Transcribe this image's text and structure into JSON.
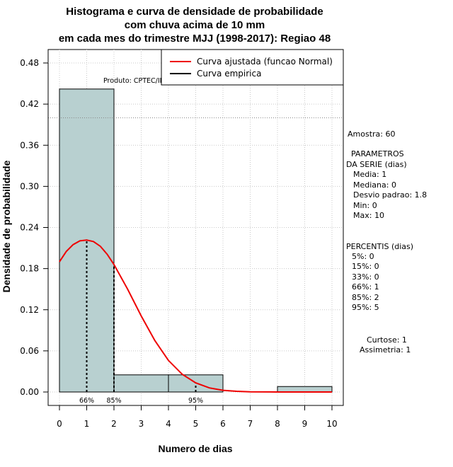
{
  "chart_data": {
    "type": "histogram",
    "title": [
      "Histograma e curva de densidade de probabilidade",
      "com chuva acima de 10 mm",
      "em cada mes do trimestre MJJ (1998-2017): Regiao 48"
    ],
    "xlabel": "Numero de dias",
    "ylabel": "Densidade de probabilidade",
    "xlim": [
      0,
      10
    ],
    "ylim": [
      0,
      0.48
    ],
    "x_ticks": [
      0,
      1,
      2,
      3,
      4,
      5,
      6,
      7,
      8,
      9,
      10
    ],
    "y_ticks": [
      0.0,
      0.06,
      0.12,
      0.18,
      0.24,
      0.3,
      0.36,
      0.42,
      0.48
    ],
    "y_tick_labels": [
      "0.00",
      "0.06",
      "0.12",
      "0.18",
      "0.24",
      "0.30",
      "0.36",
      "0.42",
      "0.48"
    ],
    "bins": [
      {
        "start": 0,
        "end": 2,
        "density": 0.442
      },
      {
        "start": 2,
        "end": 4,
        "density": 0.025
      },
      {
        "start": 4,
        "end": 6,
        "density": 0.025
      },
      {
        "start": 6,
        "end": 8,
        "density": 0.0
      },
      {
        "start": 8,
        "end": 10,
        "density": 0.008
      }
    ],
    "fitted_curve": {
      "name": "Curva ajustada (funcao Normal)",
      "color": "#ee0000",
      "x": [
        0,
        0.25,
        0.5,
        0.75,
        1,
        1.25,
        1.5,
        1.75,
        2,
        2.5,
        3,
        3.5,
        4,
        4.5,
        5,
        5.5,
        6,
        6.5,
        7,
        8,
        9,
        10
      ],
      "y": [
        0.19,
        0.205,
        0.215,
        0.2205,
        0.2216,
        0.2195,
        0.2125,
        0.201,
        0.186,
        0.15,
        0.111,
        0.075,
        0.046,
        0.026,
        0.0133,
        0.006,
        0.0025,
        0.001,
        0.0003,
        0.0,
        0.0,
        0.0
      ]
    },
    "empirical_curve": {
      "name": "Curva empirica",
      "color": "#000000"
    },
    "percentile_markers": [
      {
        "x": 1,
        "label": "66%"
      },
      {
        "x": 2,
        "label": "85%"
      },
      {
        "x": 5,
        "label": "95%"
      }
    ],
    "reference_line_y": 0.4,
    "grid": true,
    "legend_position": "top-right"
  },
  "product_label": "Produto: CPTEC/INPE",
  "stats": {
    "amostra": "Amostra: 60",
    "parametros_title_1": "PARAMETROS",
    "parametros_title_2": "DA SERIE (dias)",
    "media": "Media: 1",
    "mediana": "Mediana: 0",
    "desvio": "Desvio padrao: 1.8",
    "min": "Min: 0",
    "max": "Max: 10",
    "percentis_title": "PERCENTIS (dias)",
    "p5": "5%: 0",
    "p15": "15%: 0",
    "p33": "33%: 0",
    "p66": "66%: 1",
    "p85": "85%: 2",
    "p95": "95%: 5",
    "curtose": "Curtose: 1",
    "assimetria": "Assimetria: 1"
  },
  "colors": {
    "bar_fill": "#b8d0d0",
    "fitted_curve": "#ee0000",
    "grid": "#c8c8c8"
  }
}
